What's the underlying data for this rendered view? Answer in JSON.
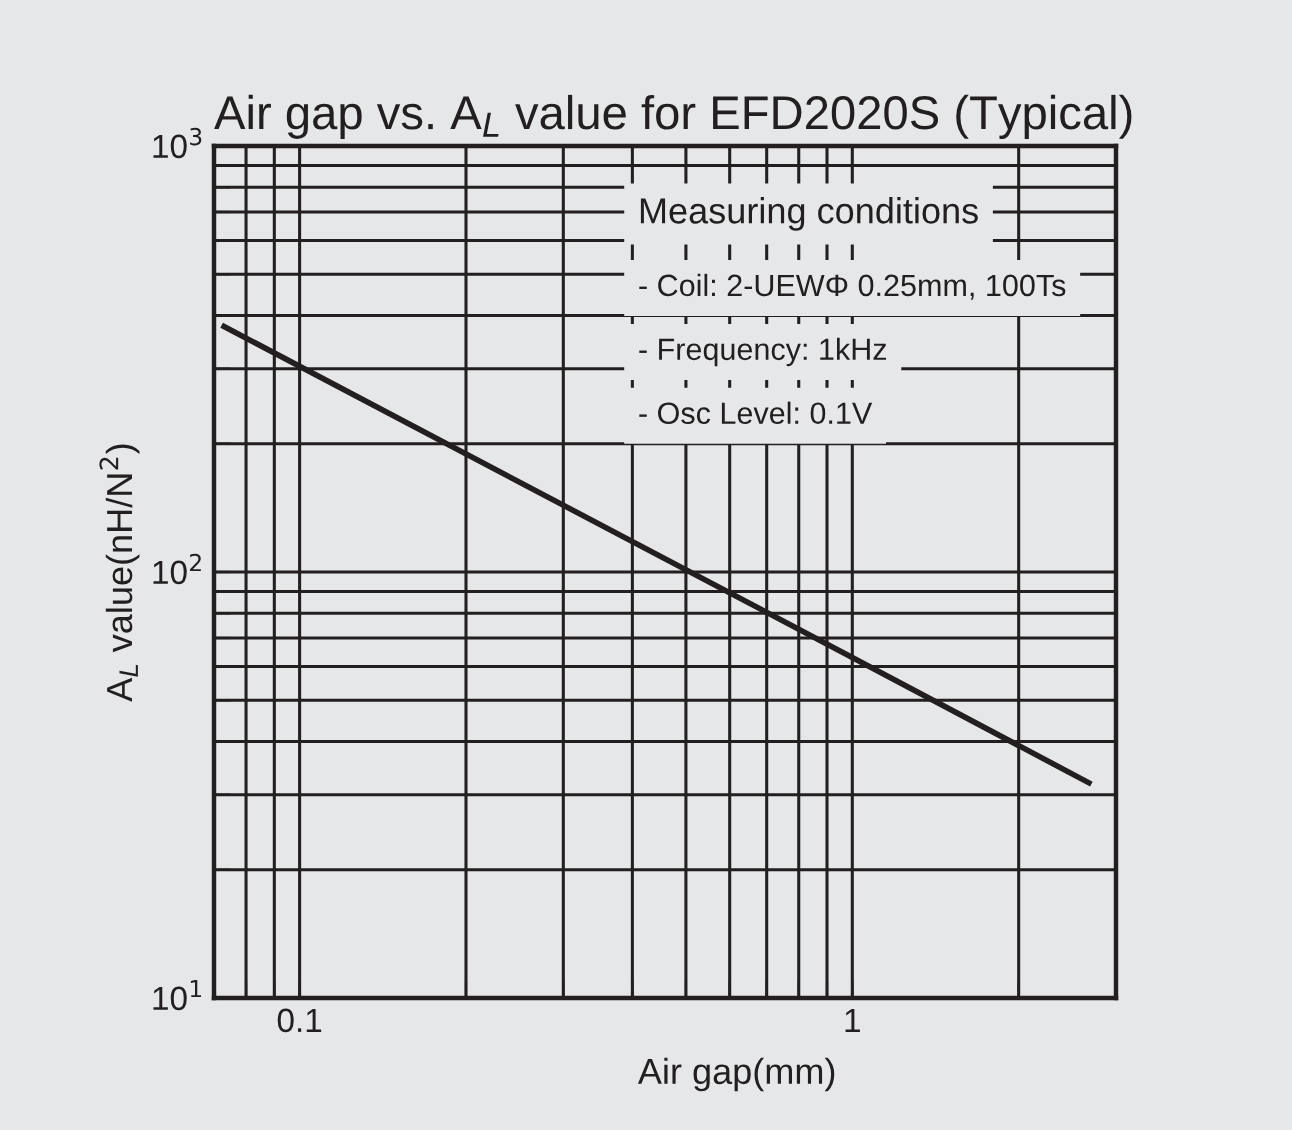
{
  "chart_data": {
    "type": "line",
    "title": "Air gap vs. A$_{L}$ value for EFD2020S (Typical)",
    "xlabel": "Air gap(mm)",
    "ylabel": "A$_{L}$ value(nH/N$^{2}$)",
    "log": "xy",
    "grid": true,
    "marker": "none",
    "line_style": "solid",
    "x": [
      0.073,
      1,
      2.68
    ],
    "series": [
      {
        "color": "#231f20",
        "values": [
          377,
          63,
          32
        ]
      }
    ],
    "xlim": [
      0.07,
      3
    ],
    "xticks": [
      {
        "value": 0.08,
        "label": null
      },
      {
        "value": 0.09,
        "label": null
      },
      0.1,
      {
        "value": 0.2,
        "label": null
      },
      {
        "value": 0.3,
        "label": null
      },
      {
        "value": 0.4,
        "label": null
      },
      {
        "value": 0.5,
        "label": null
      },
      {
        "value": 0.6,
        "label": null
      },
      {
        "value": 0.7,
        "label": null
      },
      {
        "value": 0.8,
        "label": null
      },
      {
        "value": 0.9,
        "label": null
      },
      1,
      {
        "value": 2,
        "label": null
      }
    ],
    "ylim": [
      10,
      1000
    ],
    "yticks": [
      {
        "value": 10,
        "label": "10$^{1}$"
      },
      {
        "value": 20,
        "label": null
      },
      {
        "value": 30,
        "label": null
      },
      {
        "value": 40,
        "label": null
      },
      {
        "value": 50,
        "label": null
      },
      {
        "value": 60,
        "label": null
      },
      {
        "value": 70,
        "label": null
      },
      {
        "value": 80,
        "label": null
      },
      {
        "value": 90,
        "label": null
      },
      {
        "value": 100,
        "label": "10$^{2}$"
      },
      {
        "value": 200,
        "label": null
      },
      {
        "value": 300,
        "label": null
      },
      {
        "value": 400,
        "label": null
      },
      {
        "value": 500,
        "label": null
      },
      {
        "value": 600,
        "label": null
      },
      {
        "value": 700,
        "label": null
      },
      {
        "value": 800,
        "label": null
      },
      {
        "value": 900,
        "label": null
      },
      {
        "value": 1000,
        "label": "10$^{3}$"
      }
    ],
    "annotations": [
      "Measuring conditions",
      "- Coil: 2-UEWΦ 0.25mm, 100Ts",
      "- Frequency: 1kHz",
      "- Osc Level: 0.1V"
    ]
  }
}
